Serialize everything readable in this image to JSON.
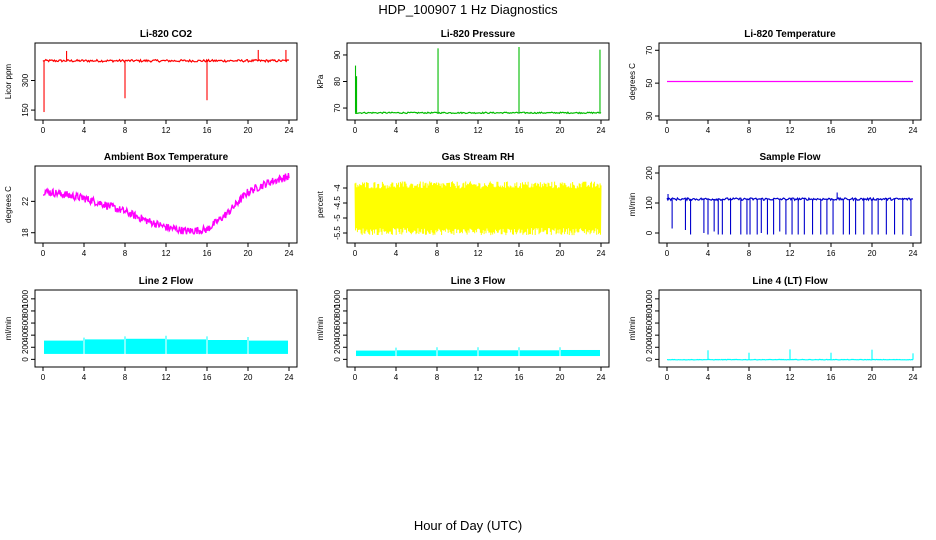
{
  "figure": {
    "title": "HDP_100907  1 Hz Diagnostics",
    "xlabel": "Hour of Day (UTC)"
  },
  "chart_data": [
    {
      "type": "line",
      "title": "Li-820 CO2",
      "ylabel": "Licor ppm",
      "color": "#ff0000",
      "x_ticks": [
        0,
        4,
        8,
        12,
        16,
        20,
        24
      ],
      "xlim": [
        0,
        24
      ],
      "y_ticks": [
        150,
        300
      ],
      "ylim": [
        120,
        470
      ],
      "series": [
        {
          "baseline": 400,
          "noise": 6,
          "kind": "flat",
          "spikes": [
            [
              0.1,
              140
            ],
            [
              2.3,
              450
            ],
            [
              8.0,
              210
            ],
            [
              16.0,
              200
            ],
            [
              21.0,
              455
            ],
            [
              23.7,
              455
            ]
          ]
        }
      ]
    },
    {
      "type": "line",
      "title": "Li-820 Pressure",
      "ylabel": "kPa",
      "color": "#00bb00",
      "x_ticks": [
        0,
        4,
        8,
        12,
        16,
        20,
        24
      ],
      "xlim": [
        0,
        24
      ],
      "y_ticks": [
        70,
        80,
        90
      ],
      "ylim": [
        67,
        93
      ],
      "series": [
        {
          "baseline": 68.2,
          "noise": 0.25,
          "kind": "flat",
          "spikes": [
            [
              0.05,
              86
            ],
            [
              0.15,
              82
            ],
            [
              8.1,
              92.5
            ],
            [
              16.0,
              93
            ],
            [
              23.9,
              92
            ]
          ]
        }
      ]
    },
    {
      "type": "line",
      "title": "Li-820 Temperature",
      "ylabel": "degrees C",
      "color": "#ff00ff",
      "x_ticks": [
        0,
        4,
        8,
        12,
        16,
        20,
        24
      ],
      "xlim": [
        0,
        24
      ],
      "y_ticks": [
        30,
        50,
        70
      ],
      "ylim": [
        30,
        72
      ],
      "series": [
        {
          "baseline": 51,
          "noise": 0,
          "kind": "flat",
          "spikes": []
        }
      ]
    },
    {
      "type": "line",
      "title": "Ambient Box Temperature",
      "ylabel": "degrees C",
      "color": "#ff00ff",
      "x_ticks": [
        0,
        4,
        8,
        12,
        16,
        20,
        24
      ],
      "xlim": [
        0,
        24
      ],
      "y_ticks": [
        18,
        22
      ],
      "ylim": [
        17.2,
        26
      ],
      "series": [
        {
          "kind": "curve",
          "band": 1.0,
          "x": [
            0,
            2,
            4,
            6,
            8,
            10,
            12,
            14,
            16,
            18,
            20,
            22,
            24
          ],
          "y": [
            23.3,
            22.9,
            22.4,
            21.6,
            20.7,
            19.6,
            18.7,
            18.2,
            18.4,
            20.5,
            23.2,
            24.4,
            25.2
          ]
        }
      ]
    },
    {
      "type": "line",
      "title": "Gas Stream RH",
      "ylabel": "percent",
      "color": "#ffff00",
      "x_ticks": [
        0,
        4,
        8,
        12,
        16,
        20,
        24
      ],
      "xlim": [
        0,
        24
      ],
      "y_ticks": [
        -5.5,
        -5.0,
        -4.5,
        -4.0
      ],
      "ylim": [
        -5.7,
        -3.4
      ],
      "series": [
        {
          "kind": "band",
          "low": -5.45,
          "high": -3.9,
          "jitter": 0.12
        }
      ]
    },
    {
      "type": "line",
      "title": "Sample Flow",
      "ylabel": "ml/min",
      "color": "#0000cc",
      "x_ticks": [
        0,
        4,
        8,
        12,
        16,
        20,
        24
      ],
      "xlim": [
        0,
        24
      ],
      "y_ticks": [
        0,
        100,
        200
      ],
      "ylim": [
        -20,
        210
      ],
      "series": [
        {
          "baseline": 113,
          "noise": 4,
          "kind": "flat",
          "spikes": [
            [
              0.1,
              130
            ],
            [
              0.5,
              15
            ],
            [
              1.8,
              10
            ],
            [
              2.3,
              -5
            ],
            [
              3.6,
              0
            ],
            [
              4.0,
              -5
            ],
            [
              4.6,
              5
            ],
            [
              5.0,
              -5
            ],
            [
              5.4,
              -5
            ],
            [
              6.2,
              -5
            ],
            [
              7.2,
              -5
            ],
            [
              7.8,
              -5
            ],
            [
              8.1,
              -5
            ],
            [
              8.8,
              -5
            ],
            [
              9.2,
              0
            ],
            [
              9.8,
              -5
            ],
            [
              10.4,
              -5
            ],
            [
              11.0,
              5
            ],
            [
              11.6,
              -5
            ],
            [
              12.2,
              -5
            ],
            [
              12.8,
              -5
            ],
            [
              13.4,
              -5
            ],
            [
              14.2,
              -5
            ],
            [
              15.0,
              -5
            ],
            [
              15.6,
              -5
            ],
            [
              16.2,
              -5
            ],
            [
              16.6,
              135
            ],
            [
              17.2,
              -5
            ],
            [
              17.8,
              -5
            ],
            [
              18.4,
              -5
            ],
            [
              19.2,
              -5
            ],
            [
              20.0,
              -5
            ],
            [
              20.6,
              -5
            ],
            [
              21.4,
              -5
            ],
            [
              22.2,
              -5
            ],
            [
              23.0,
              -5
            ],
            [
              23.8,
              -10
            ]
          ]
        }
      ]
    },
    {
      "type": "line",
      "title": "Line 2 Flow",
      "ylabel": "ml/min",
      "color": "#00ffff",
      "x_ticks": [
        0,
        4,
        8,
        12,
        16,
        20,
        24
      ],
      "xlim": [
        0,
        24
      ],
      "y_ticks": [
        0,
        200,
        400,
        600,
        800,
        1000
      ],
      "ylim": [
        -60,
        1080
      ],
      "series": [
        {
          "kind": "segments",
          "low": 90,
          "gaps": [
            4,
            8,
            12,
            16,
            20
          ],
          "highs": [
            [
              0,
              4,
              310
            ],
            [
              4,
              8,
              330
            ],
            [
              8,
              12,
              340
            ],
            [
              12,
              16,
              330
            ],
            [
              16,
              20,
              320
            ],
            [
              20,
              24,
              310
            ]
          ]
        }
      ]
    },
    {
      "type": "line",
      "title": "Line 3 Flow",
      "ylabel": "ml/min",
      "color": "#00ffff",
      "x_ticks": [
        0,
        4,
        8,
        12,
        16,
        20,
        24
      ],
      "xlim": [
        0,
        24
      ],
      "y_ticks": [
        0,
        200,
        400,
        600,
        800,
        1000
      ],
      "ylim": [
        -60,
        1080
      ],
      "series": [
        {
          "kind": "segments",
          "low": 55,
          "gaps": [
            4,
            8,
            12,
            16,
            20
          ],
          "highs": [
            [
              0,
              4,
              145
            ],
            [
              4,
              8,
              150
            ],
            [
              8,
              12,
              150
            ],
            [
              12,
              16,
              150
            ],
            [
              16,
              20,
              150
            ],
            [
              20,
              24,
              155
            ]
          ]
        }
      ]
    },
    {
      "type": "line",
      "title": "Line 4 (LT) Flow",
      "ylabel": "ml/min",
      "color": "#00ffff",
      "x_ticks": [
        0,
        4,
        8,
        12,
        16,
        20,
        24
      ],
      "xlim": [
        0,
        24
      ],
      "y_ticks": [
        0,
        200,
        400,
        600,
        800,
        1000
      ],
      "ylim": [
        -60,
        1080
      ],
      "series": [
        {
          "baseline": -5,
          "noise": 4,
          "kind": "flat",
          "spikes": [
            [
              4.0,
              150
            ],
            [
              8.0,
              110
            ],
            [
              12.0,
              165
            ],
            [
              16.0,
              110
            ],
            [
              20.0,
              160
            ],
            [
              24.0,
              100
            ]
          ]
        }
      ]
    }
  ]
}
